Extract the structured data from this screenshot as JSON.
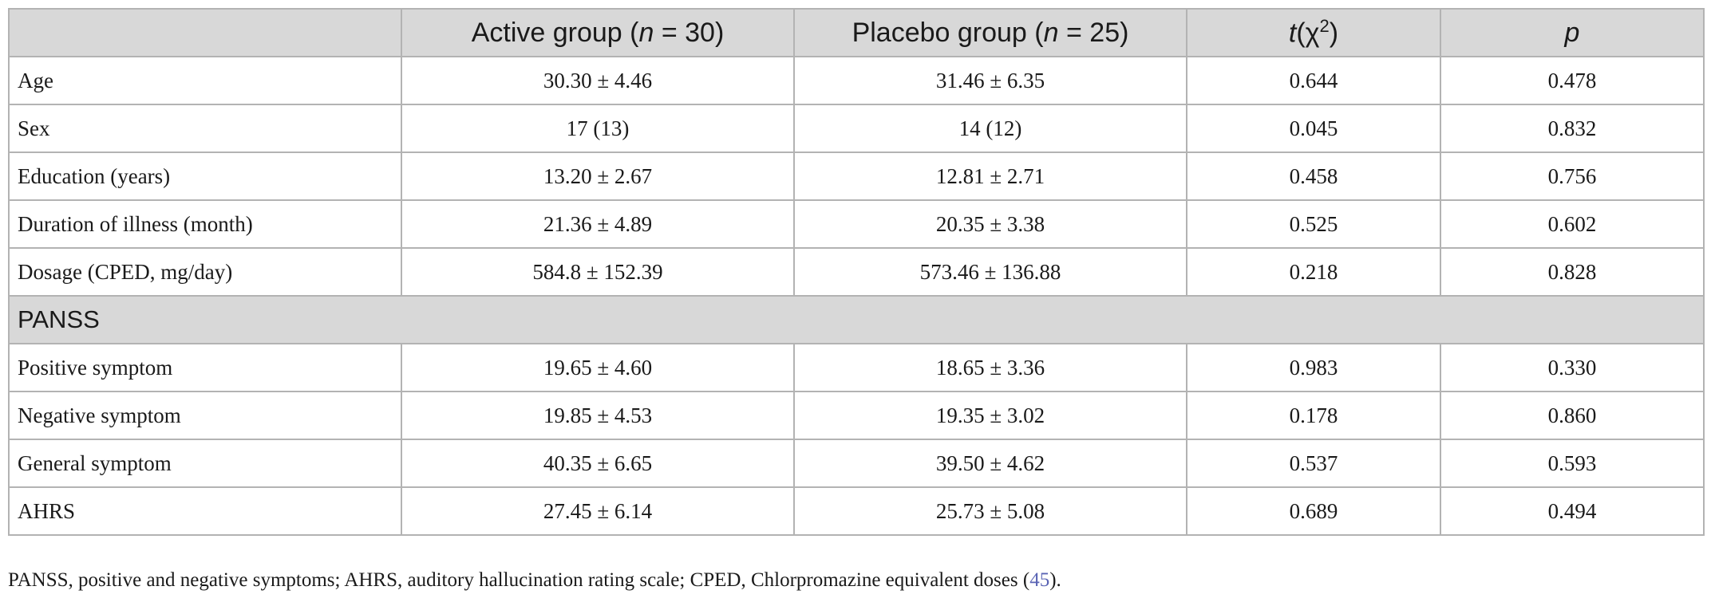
{
  "table": {
    "headers": {
      "col1": {
        "prefix": "Active group (",
        "n": "n",
        "suffix": " = 30)"
      },
      "col2": {
        "prefix": "Placebo group (",
        "n": "n",
        "suffix": " = 25)"
      },
      "col3": {
        "t": "t",
        "rest": "(χ",
        "sup": "2",
        "close": ")"
      },
      "col4": "p"
    },
    "rows": [
      {
        "label": "Age",
        "active": "30.30 ± 4.46",
        "placebo": "31.46 ± 6.35",
        "t": "0.644",
        "p": "0.478"
      },
      {
        "label": "Sex",
        "active": "17 (13)",
        "placebo": "14 (12)",
        "t": "0.045",
        "p": "0.832"
      },
      {
        "label": "Education (years)",
        "active": "13.20 ± 2.67",
        "placebo": "12.81 ± 2.71",
        "t": "0.458",
        "p": "0.756"
      },
      {
        "label": "Duration of illness (month)",
        "active": "21.36 ± 4.89",
        "placebo": "20.35 ± 3.38",
        "t": "0.525",
        "p": "0.602"
      },
      {
        "label": "Dosage (CPED, mg/day)",
        "active": "584.8 ± 152.39",
        "placebo": "573.46 ± 136.88",
        "t": "0.218",
        "p": "0.828"
      }
    ],
    "section": "PANSS",
    "section_rows": [
      {
        "label": "Positive symptom",
        "active": "19.65 ± 4.60",
        "placebo": "18.65 ± 3.36",
        "t": "0.983",
        "p": "0.330"
      },
      {
        "label": "Negative symptom",
        "active": "19.85 ± 4.53",
        "placebo": "19.35 ± 3.02",
        "t": "0.178",
        "p": "0.860"
      },
      {
        "label": "General symptom",
        "active": "40.35 ± 6.65",
        "placebo": "39.50 ± 4.62",
        "t": "0.537",
        "p": "0.593"
      },
      {
        "label": "AHRS",
        "active": "27.45 ± 6.14",
        "placebo": "25.73 ± 5.08",
        "t": "0.689",
        "p": "0.494"
      }
    ]
  },
  "footnote": {
    "text": "PANSS, positive and negative symptoms; AHRS, auditory hallucination rating scale; CPED, Chlorpromazine equivalent doses (",
    "ref": "45",
    "end": ")."
  }
}
